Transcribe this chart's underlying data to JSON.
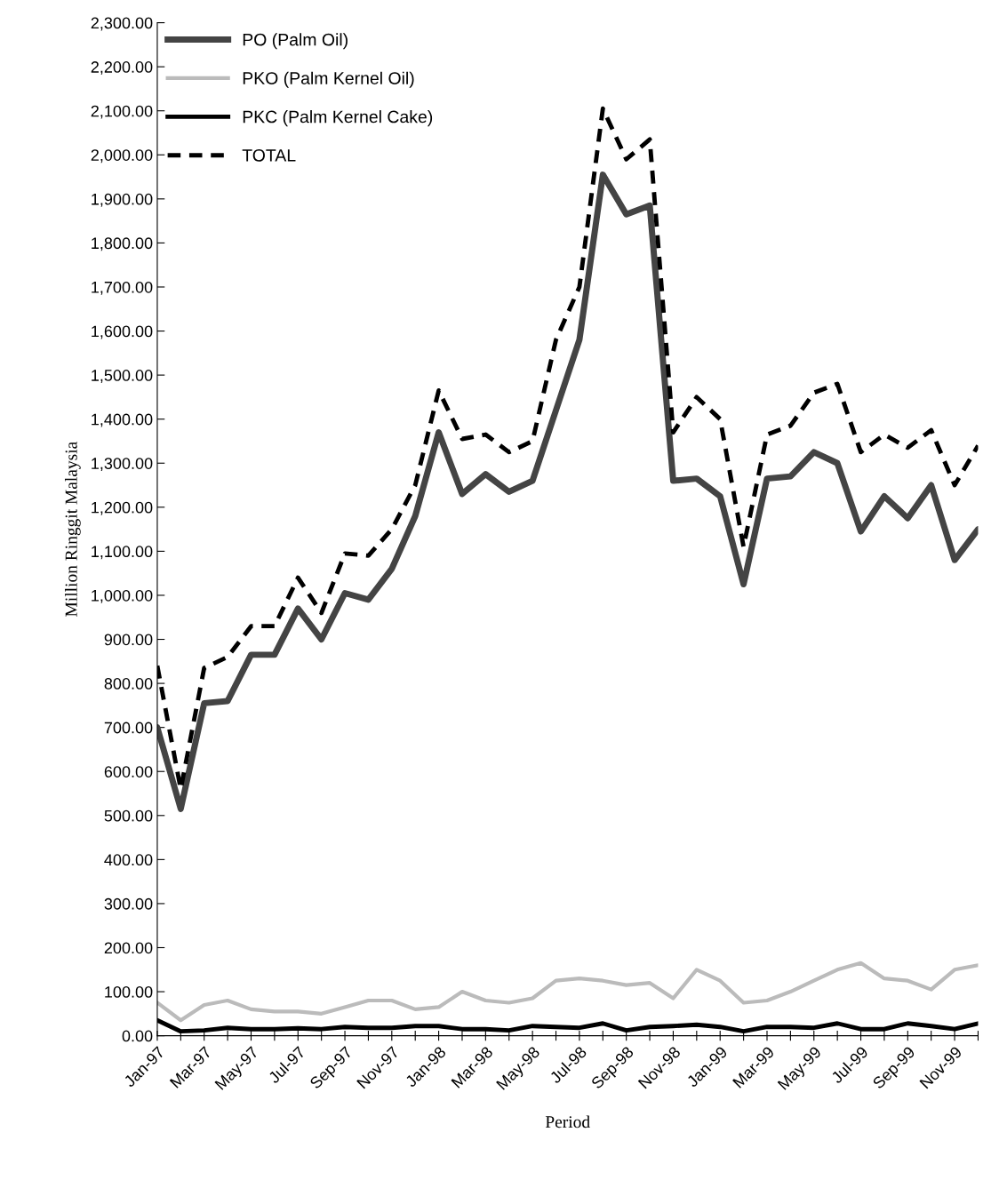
{
  "chart_data": {
    "type": "line",
    "xlabel": "Period",
    "ylabel": "Million Ringgit Malaysia",
    "categories": [
      "Jan-97",
      null,
      "Mar-97",
      null,
      "May-97",
      null,
      "Jul-97",
      null,
      "Sep-97",
      null,
      "Nov-97",
      null,
      "Jan-98",
      null,
      "Mar-98",
      null,
      "May-98",
      null,
      "Jul-98",
      null,
      "Sep-98",
      null,
      "Nov-98",
      null,
      "Jan-99",
      null,
      "Mar-99",
      null,
      "May-99",
      null,
      "Jul-99",
      null,
      "Sep-99",
      null,
      "Nov-99",
      null
    ],
    "series": [
      {
        "name": "PO (Palm Oil)",
        "color": "#444444",
        "line_style": "solid",
        "values": [
          700,
          515,
          755,
          760,
          865,
          865,
          970,
          900,
          1005,
          990,
          1060,
          1180,
          1370,
          1230,
          1275,
          1235,
          1260,
          1420,
          1580,
          1955,
          1865,
          1885,
          1260,
          1265,
          1225,
          1025,
          1265,
          1270,
          1325,
          1300,
          1145,
          1225,
          1175,
          1250,
          1080,
          1150
        ]
      },
      {
        "name": "PKO (Palm Kernel Oil)",
        "color": "#bbbbbb",
        "line_style": "solid",
        "values": [
          75,
          35,
          70,
          80,
          60,
          55,
          55,
          50,
          65,
          80,
          80,
          60,
          65,
          100,
          80,
          75,
          85,
          125,
          130,
          125,
          115,
          120,
          85,
          150,
          125,
          75,
          80,
          100,
          125,
          150,
          165,
          130,
          125,
          105,
          150,
          160
        ]
      },
      {
        "name": "PKC (Palm Kernel Cake)",
        "color": "#000000",
        "line_style": "solid",
        "values": [
          35,
          10,
          12,
          18,
          15,
          15,
          17,
          15,
          20,
          18,
          18,
          22,
          22,
          15,
          15,
          12,
          22,
          20,
          18,
          28,
          12,
          20,
          22,
          25,
          20,
          10,
          20,
          20,
          18,
          28,
          15,
          15,
          28,
          22,
          15,
          28
        ]
      },
      {
        "name": "TOTAL",
        "color": "#000000",
        "line_style": "dashed",
        "values": [
          840,
          560,
          835,
          860,
          930,
          930,
          1040,
          960,
          1095,
          1090,
          1150,
          1250,
          1465,
          1355,
          1365,
          1325,
          1350,
          1580,
          1700,
          2105,
          1990,
          2035,
          1370,
          1450,
          1400,
          1110,
          1365,
          1385,
          1460,
          1480,
          1325,
          1365,
          1335,
          1375,
          1250,
          1340
        ]
      }
    ],
    "ylim": [
      0,
      2300
    ],
    "yticks": [
      {
        "value": 0,
        "label": "0.00"
      },
      {
        "value": 100,
        "label": "100.00"
      },
      {
        "value": 200,
        "label": "200.00"
      },
      {
        "value": 300,
        "label": "300.00"
      },
      {
        "value": 400,
        "label": "400.00"
      },
      {
        "value": 500,
        "label": "500.00"
      },
      {
        "value": 600,
        "label": "600.00"
      },
      {
        "value": 700,
        "label": "700.00"
      },
      {
        "value": 800,
        "label": "800.00"
      },
      {
        "value": 900,
        "label": "900.00"
      },
      {
        "value": 1000,
        "label": "1,000.00"
      },
      {
        "value": 1100,
        "label": "1,100.00"
      },
      {
        "value": 1200,
        "label": "1,200.00"
      },
      {
        "value": 1300,
        "label": "1,300.00"
      },
      {
        "value": 1400,
        "label": "1,400.00"
      },
      {
        "value": 1500,
        "label": "1,500.00"
      },
      {
        "value": 1600,
        "label": "1,600.00"
      },
      {
        "value": 1700,
        "label": "1,700.00"
      },
      {
        "value": 1800,
        "label": "1,800.00"
      },
      {
        "value": 1900,
        "label": "1,900.00"
      },
      {
        "value": 2000,
        "label": "2,000.00"
      },
      {
        "value": 2100,
        "label": "2,100.00"
      },
      {
        "value": 2200,
        "label": "2,200.00"
      },
      {
        "value": 2300,
        "label": "2,300.00"
      }
    ],
    "grid": false,
    "legend": "top left",
    "marker": "none"
  }
}
